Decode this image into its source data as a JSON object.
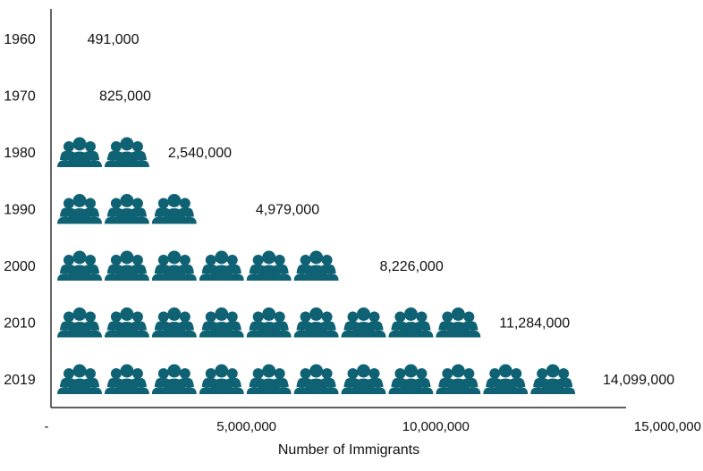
{
  "chart_data": {
    "type": "bar",
    "style": "pictograph",
    "categories": [
      "1960",
      "1970",
      "1980",
      "1990",
      "2000",
      "2010",
      "2019"
    ],
    "values": [
      491000,
      825000,
      2540000,
      4979000,
      8226000,
      11284000,
      14099000
    ],
    "value_labels": [
      "491,000",
      "825,000",
      "2,540,000",
      "4,979,000",
      "8,226,000",
      "11,284,000",
      "14,099,000"
    ],
    "units_per_icon": 1250000,
    "icon": "people-group-icon",
    "xlabel": "Number of Immigrants",
    "xlim": [
      0,
      15000000
    ],
    "x_ticks": [
      {
        "value": 0,
        "label": "-"
      },
      {
        "value": 5000000,
        "label": "5,000,000"
      },
      {
        "value": 10000000,
        "label": "10,000,000"
      },
      {
        "value": 15000000,
        "label": "15,000,000"
      }
    ],
    "grid": false,
    "legend": "none",
    "colors": {
      "icon": "#0f6273",
      "axis": "#000000",
      "text": "#111111"
    }
  }
}
